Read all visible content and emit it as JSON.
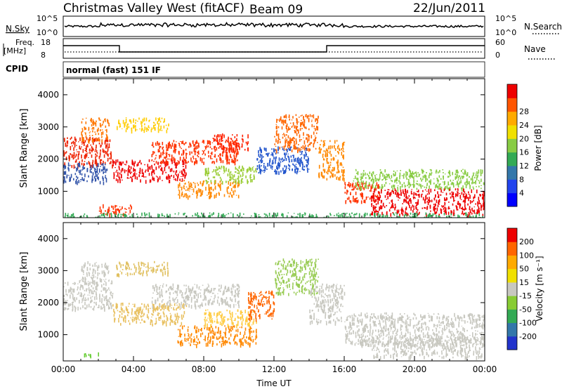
{
  "header": {
    "title": "Christmas Valley West (fitACF)",
    "beam": "Beam 09",
    "date": "22/Jun/2011"
  },
  "nsky_panel": {
    "left_label": "N.Sky",
    "right_label": "N.Search",
    "left_ticks": [
      "10^5",
      "10^0"
    ],
    "right_ticks": [
      "10^5",
      "10^0"
    ]
  },
  "freq_panel": {
    "left_label_1": "Freq.",
    "left_label_2": "[MHz]",
    "right_label": "Nave",
    "left_ticks": [
      "18",
      "8"
    ],
    "right_ticks": [
      "60",
      "0"
    ],
    "series": [
      {
        "x_hours": [
          0,
          3.2,
          3.2,
          15.0,
          15.0,
          24
        ],
        "freq": [
          15,
          15,
          10.5,
          10.5,
          15,
          15
        ]
      }
    ]
  },
  "cpid_panel": {
    "label": "CPID",
    "text": "normal (fast) 151 IF"
  },
  "chart_data": [
    {
      "type": "heatmap",
      "name": "power",
      "xlabel": "",
      "ylabel": "Slant Range [km]",
      "x_range_hours": [
        0,
        24
      ],
      "ylim_km": [
        180,
        4500
      ],
      "y_ticks": [
        "1000",
        "2000",
        "3000",
        "4000"
      ],
      "colorbar": {
        "label": "Power [dB]",
        "ticks": [
          "4",
          "8",
          "12",
          "16",
          "20",
          "24",
          "28"
        ],
        "colors": [
          "#0000ff",
          "#2244ee",
          "#3377aa",
          "#33aa55",
          "#88cc44",
          "#f0e000",
          "#ffaa00",
          "#ff5500",
          "#ee0000"
        ]
      },
      "regions": [
        {
          "t": [
            0.0,
            2.8
          ],
          "r": [
            1800,
            2700
          ],
          "c": "#ee2200"
        },
        {
          "t": [
            1.0,
            2.6
          ],
          "r": [
            2600,
            3300
          ],
          "c": "#ff7700"
        },
        {
          "t": [
            0.0,
            2.5
          ],
          "r": [
            1300,
            1900
          ],
          "c": "#3355aa"
        },
        {
          "t": [
            2.8,
            7.0
          ],
          "r": [
            1350,
            2000
          ],
          "c": "#ee0000"
        },
        {
          "t": [
            5.0,
            10.0
          ],
          "r": [
            1900,
            2600
          ],
          "c": "#ff3300"
        },
        {
          "t": [
            8.5,
            10.5
          ],
          "r": [
            2300,
            2800
          ],
          "c": "#ff2200"
        },
        {
          "t": [
            6.5,
            10.0
          ],
          "r": [
            850,
            1350
          ],
          "c": "#ff8800"
        },
        {
          "t": [
            8.0,
            11.0
          ],
          "r": [
            1300,
            1800
          ],
          "c": "#99cc33"
        },
        {
          "t": [
            11.0,
            14.0
          ],
          "r": [
            1600,
            2400
          ],
          "c": "#2255cc"
        },
        {
          "t": [
            12.0,
            14.5
          ],
          "r": [
            2300,
            3400
          ],
          "c": "#ff6600"
        },
        {
          "t": [
            14.5,
            16.0
          ],
          "r": [
            1400,
            2600
          ],
          "c": "#ff8800"
        },
        {
          "t": [
            16.0,
            18.0
          ],
          "r": [
            700,
            1300
          ],
          "c": "#ff3300"
        },
        {
          "t": [
            16.5,
            24.0
          ],
          "r": [
            1100,
            1700
          ],
          "c": "#88cc44"
        },
        {
          "t": [
            17.5,
            24.0
          ],
          "r": [
            300,
            1100
          ],
          "c": "#ee0000"
        },
        {
          "t": [
            2.0,
            4.0
          ],
          "r": [
            300,
            600
          ],
          "c": "#ff3300"
        },
        {
          "t": [
            3.0,
            6.0
          ],
          "r": [
            2900,
            3300
          ],
          "c": "#ffcc00"
        },
        {
          "t": [
            0.0,
            24.0
          ],
          "r": [
            180,
            350
          ],
          "c": "#33aa55"
        }
      ]
    },
    {
      "type": "heatmap",
      "name": "velocity",
      "xlabel": "Time UT",
      "ylabel": "Slant Range [km]",
      "x_range_hours": [
        0,
        24
      ],
      "ylim_km": [
        180,
        4500
      ],
      "x_ticks": [
        "00:00",
        "04:00",
        "08:00",
        "12:00",
        "16:00",
        "20:00",
        "00:00"
      ],
      "y_ticks": [
        "1000",
        "2000",
        "3000",
        "4000"
      ],
      "colorbar": {
        "label": "Velocity [m s⁻¹]",
        "ticks": [
          "200",
          "100",
          "50",
          "15",
          "-15",
          "-50",
          "-100",
          "-200"
        ],
        "colors": [
          "#2233cc",
          "#3377aa",
          "#33aa55",
          "#88cc33",
          "#c8c8c0",
          "#f0e000",
          "#ffaa00",
          "#ff6600",
          "#ee0000"
        ]
      },
      "regions": [
        {
          "t": [
            0.0,
            2.8
          ],
          "r": [
            1800,
            2700
          ],
          "c": "#c8c8c0"
        },
        {
          "t": [
            1.0,
            2.6
          ],
          "r": [
            2600,
            3300
          ],
          "c": "#c8c8c0"
        },
        {
          "t": [
            2.8,
            7.0
          ],
          "r": [
            1350,
            2000
          ],
          "c": "#e8c060"
        },
        {
          "t": [
            5.0,
            10.0
          ],
          "r": [
            1900,
            2600
          ],
          "c": "#c8c8c0"
        },
        {
          "t": [
            6.5,
            11.0
          ],
          "r": [
            700,
            1300
          ],
          "c": "#ff8800"
        },
        {
          "t": [
            8.0,
            11.0
          ],
          "r": [
            1300,
            1800
          ],
          "c": "#ffcc44"
        },
        {
          "t": [
            10.5,
            12.0
          ],
          "r": [
            1500,
            2400
          ],
          "c": "#ff6600"
        },
        {
          "t": [
            12.0,
            14.5
          ],
          "r": [
            2300,
            3400
          ],
          "c": "#99cc55"
        },
        {
          "t": [
            14.0,
            16.0
          ],
          "r": [
            1400,
            2600
          ],
          "c": "#c8c8c0"
        },
        {
          "t": [
            16.0,
            24.0
          ],
          "r": [
            700,
            1700
          ],
          "c": "#c8c8c0"
        },
        {
          "t": [
            17.5,
            24.0
          ],
          "r": [
            300,
            1000
          ],
          "c": "#c8c8c0"
        },
        {
          "t": [
            3.0,
            6.0
          ],
          "r": [
            2900,
            3300
          ],
          "c": "#e0c060"
        },
        {
          "t": [
            1.0,
            2.0
          ],
          "r": [
            350,
            450
          ],
          "c": "#66cc33"
        }
      ]
    }
  ]
}
